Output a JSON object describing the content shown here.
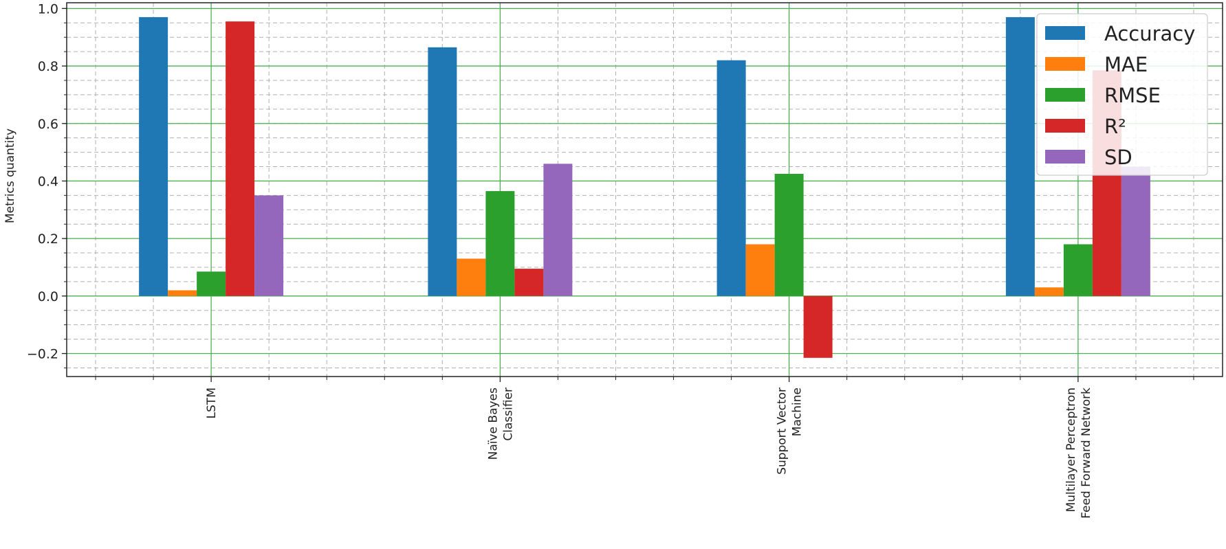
{
  "chart_data": {
    "type": "bar",
    "title": "",
    "xlabel": "",
    "ylabel": "Metrics quantity",
    "ylim": [
      -0.28,
      1.02
    ],
    "yticks": [
      -0.2,
      0.0,
      0.2,
      0.4,
      0.6,
      0.8,
      1.0
    ],
    "ytick_labels": [
      "−0.2",
      "0.0",
      "0.2",
      "0.4",
      "0.6",
      "0.8",
      "1.0"
    ],
    "grid": true,
    "legend_position": "top-right",
    "categories": [
      [
        "LSTM"
      ],
      [
        "Naïve Bayes",
        "Classifier"
      ],
      [
        "Support Vector",
        "Machine"
      ],
      [
        "Multilayer Perceptron",
        "Feed Forward Network"
      ]
    ],
    "series": [
      {
        "name": "Accuracy",
        "color": "#1f77b4",
        "values": [
          0.97,
          0.865,
          0.82,
          0.97
        ]
      },
      {
        "name": "MAE",
        "color": "#ff7f0e",
        "values": [
          0.02,
          0.13,
          0.18,
          0.03
        ]
      },
      {
        "name": "RMSE",
        "color": "#2ca02c",
        "values": [
          0.085,
          0.365,
          0.425,
          0.18
        ]
      },
      {
        "name": "R²",
        "color": "#d62728",
        "values": [
          0.955,
          0.095,
          -0.215,
          0.785
        ]
      },
      {
        "name": "SD",
        "color": "#9467bd",
        "values": [
          0.35,
          0.46,
          0.0,
          0.45
        ]
      }
    ]
  }
}
